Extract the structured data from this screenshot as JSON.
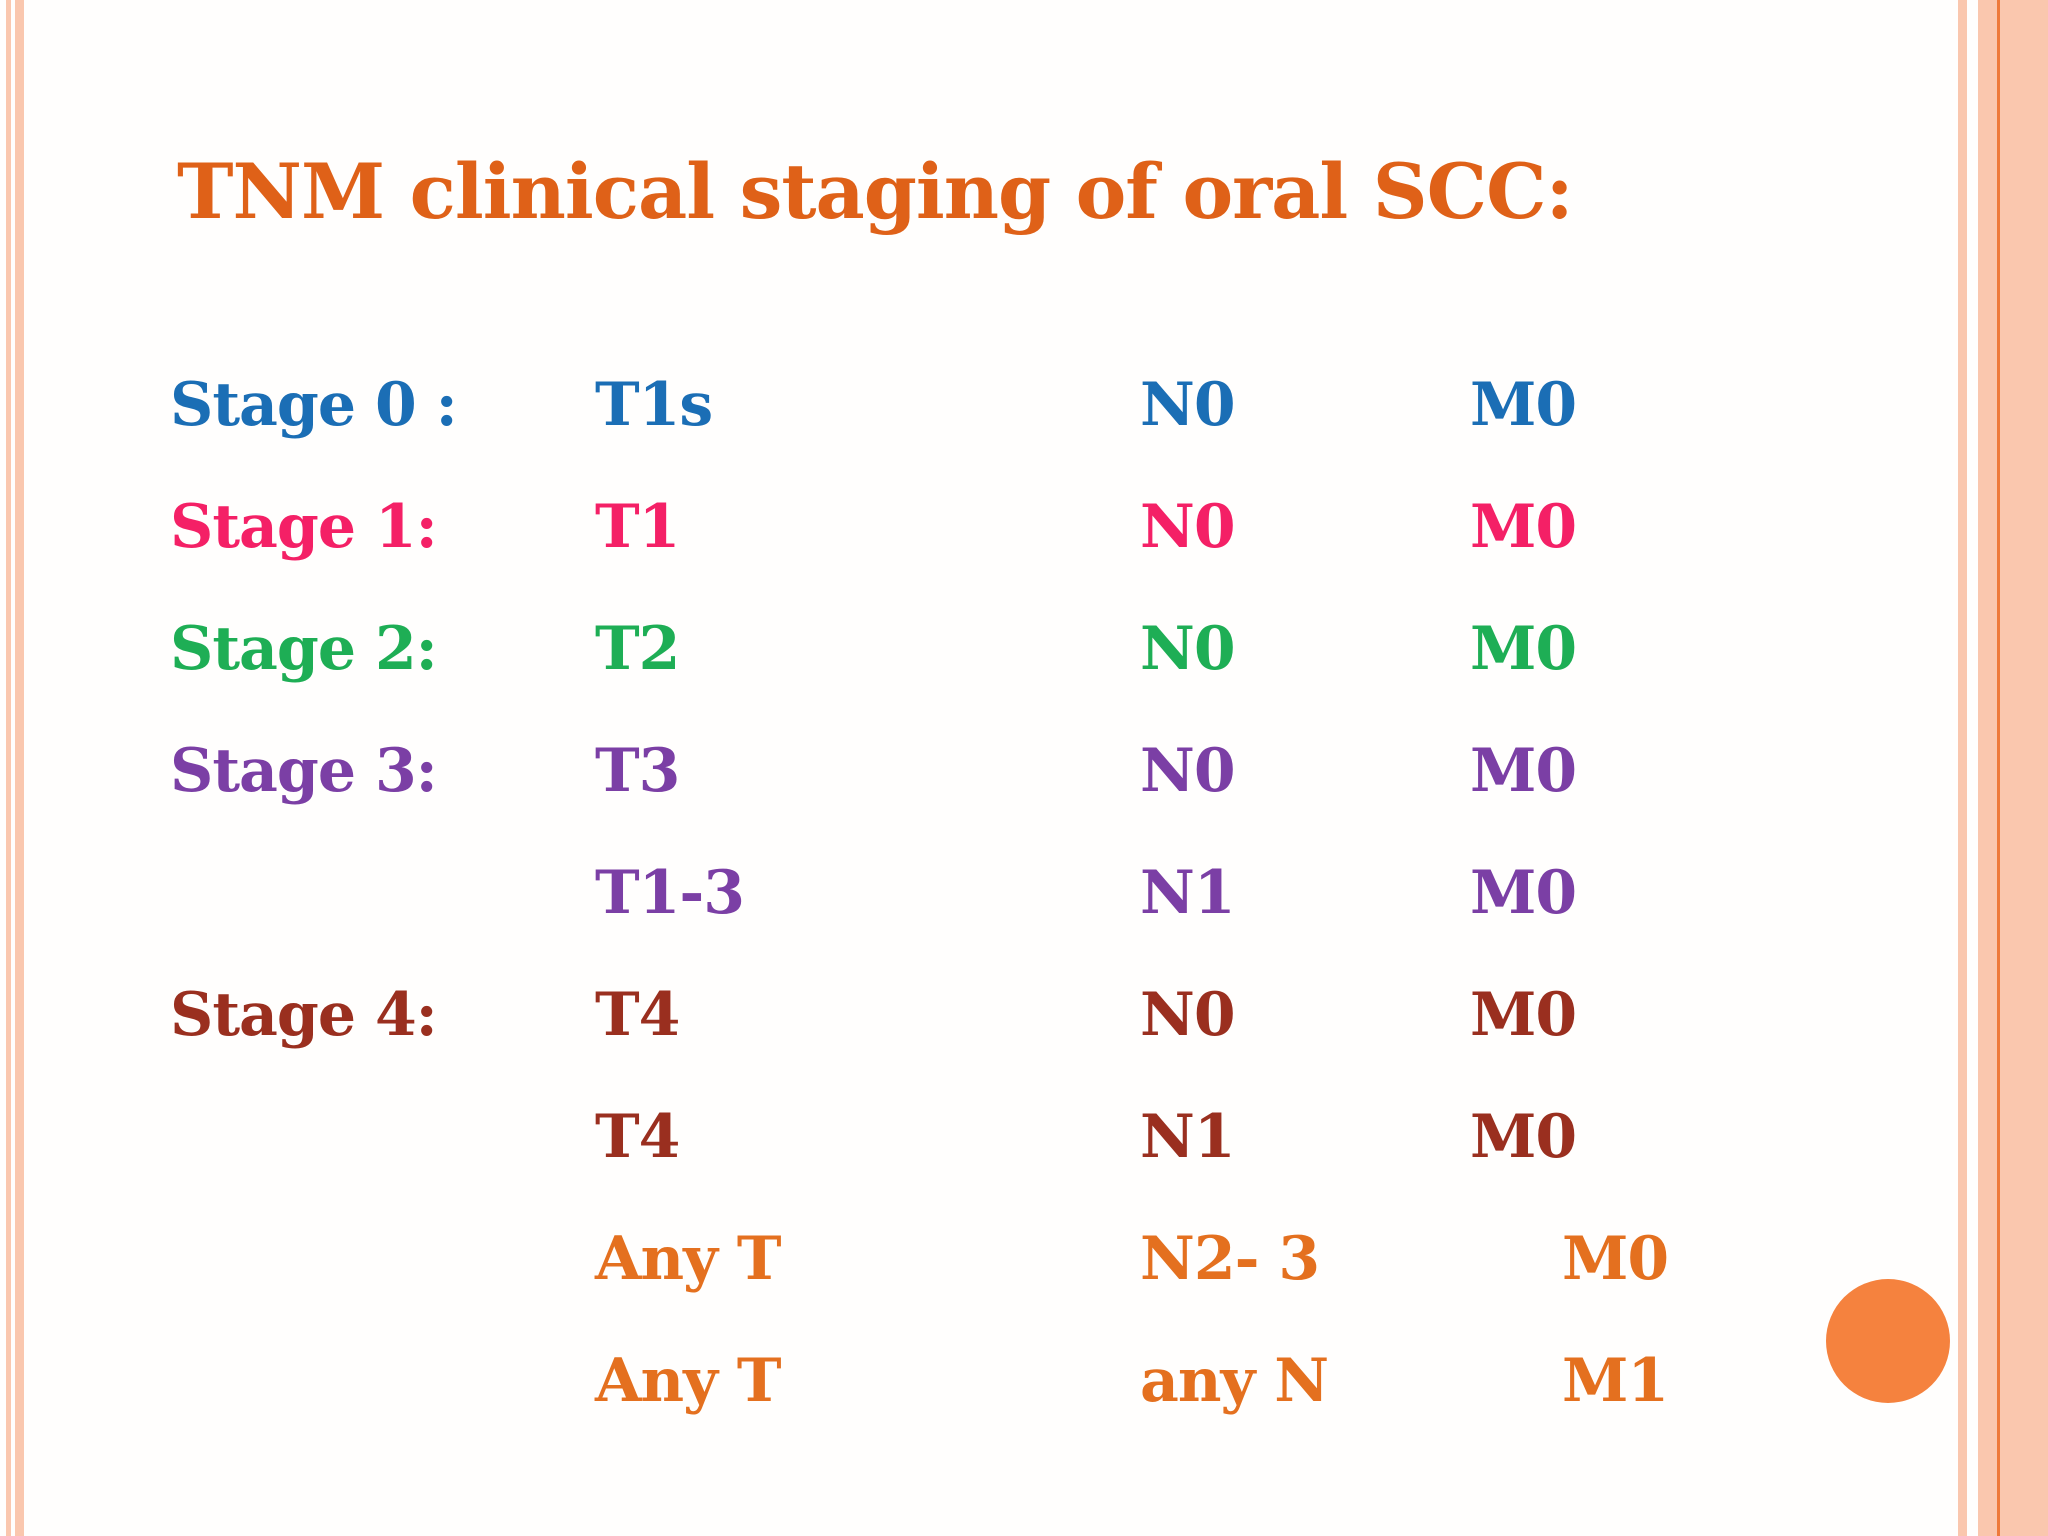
{
  "slide": {
    "title": "TNM clinical staging of oral SCC:",
    "title_color": "#DF6118"
  },
  "table": {
    "rows": [
      {
        "stage": "Stage 0 :",
        "t": "T1s",
        "n": "N0",
        "m": "M0",
        "color": "#1B6EB5"
      },
      {
        "stage": "Stage 1:",
        "t": "T1",
        "n": "N0",
        "m": "M0",
        "color": "#F42066"
      },
      {
        "stage": "Stage 2:",
        "t": "T2",
        "n": "N0",
        "m": "M0",
        "color": "#1EAE55"
      },
      {
        "stage": "Stage 3:",
        "t": "T3",
        "n": "N0",
        "m": "M0",
        "color": "#7B3FA5"
      },
      {
        "stage": "",
        "t": "T1-3",
        "n": "N1",
        "m": "M0",
        "color": "#7B3FA5"
      },
      {
        "stage": "Stage 4:",
        "t": "T4",
        "n": "N0",
        "m": "M0",
        "color": "#9A2F1F"
      },
      {
        "stage": "",
        "t": "T4",
        "n": "N1",
        "m": "M0",
        "color": "#9A2F1F"
      },
      {
        "stage": "",
        "t": "Any T",
        "n": "N2- 3",
        "m": "M0",
        "color": "#E4701F"
      },
      {
        "stage": "",
        "t": "Any T",
        "n": "any N",
        "m": "M1",
        "color": "#E4701F"
      }
    ]
  },
  "decoration": {
    "border_stripe_color": "#FAC7AE",
    "border_accent_color": "#EE7A3B",
    "circle_color": "#F5823E"
  }
}
